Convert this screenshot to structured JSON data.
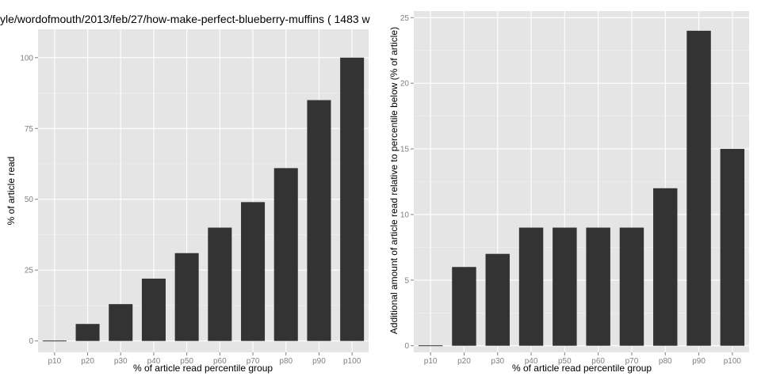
{
  "chart_data": [
    {
      "type": "bar",
      "title": "yle/wordofmouth/2013/feb/27/how-make-perfect-blueberry-muffins ( 1483 w",
      "xlabel": "% of article read percentile group",
      "ylabel": "% of article read",
      "categories": [
        "p10",
        "p20",
        "p30",
        "p40",
        "p50",
        "p60",
        "p70",
        "p80",
        "p90",
        "p100"
      ],
      "values": [
        0,
        6,
        13,
        22,
        31,
        40,
        49,
        61,
        85,
        100
      ],
      "yticks": [
        0,
        25,
        50,
        75,
        100
      ],
      "ylim": [
        -4,
        110
      ],
      "grid": true,
      "bar_color": "#333333",
      "panel_color": "#e5e5e5"
    },
    {
      "type": "bar",
      "title": "",
      "xlabel": "% of article read percentile group",
      "ylabel": "Additional amount of article read relative to percentile below (% of article)",
      "categories": [
        "p10",
        "p20",
        "p30",
        "p40",
        "p50",
        "p60",
        "p70",
        "p80",
        "p90",
        "p100"
      ],
      "values": [
        0,
        6,
        7,
        9,
        9,
        9,
        9,
        12,
        24,
        15
      ],
      "yticks": [
        0,
        5,
        10,
        15,
        20,
        25
      ],
      "ylim": [
        -0.5,
        25.5
      ],
      "grid": true,
      "bar_color": "#333333",
      "panel_color": "#e5e5e5"
    }
  ]
}
